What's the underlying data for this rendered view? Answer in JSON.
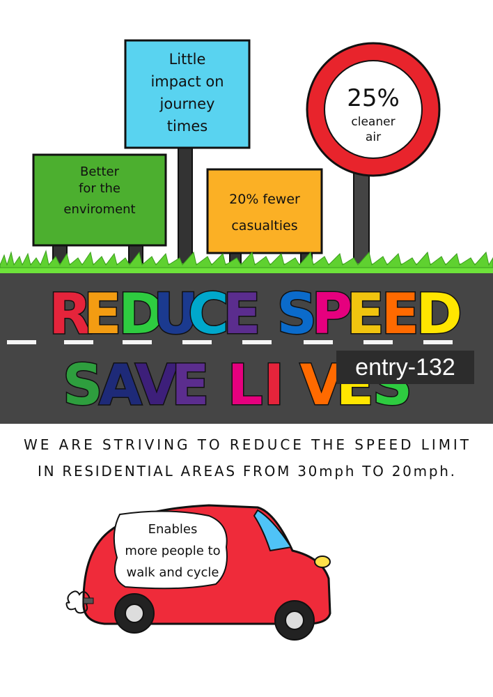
{
  "signs": {
    "green": [
      "Better",
      "for the",
      "enviroment"
    ],
    "blue": [
      "Little",
      "impact on",
      "journey",
      "times"
    ],
    "orange": [
      "20% fewer",
      "casualties"
    ],
    "round": [
      "25%",
      "cleaner",
      "air"
    ]
  },
  "headline": {
    "line1": [
      "R",
      "E",
      "D",
      "U",
      "C",
      "E",
      " ",
      "S",
      "P",
      "E",
      "E",
      "D"
    ],
    "line2": [
      "S",
      "A",
      "V",
      "E",
      " ",
      "L",
      "I",
      "V",
      "E",
      "S"
    ]
  },
  "colors": {
    "line1": [
      "#e5243b",
      "#f39c12",
      "#2ecc40",
      "#1b3a8f",
      "#00a8cc",
      "#5b2d8e",
      "",
      "#0b6bcb",
      "#e6007e",
      "#f1c40f",
      "#ff6a00",
      "#ffe600"
    ],
    "line2": [
      "#2e9e3e",
      "#1e2a78",
      "#3d1f7a",
      "#5b2d8e",
      "",
      "#e6007e",
      "#e5243b",
      "#ff6a00",
      "#ffe600",
      "#2ecc40"
    ]
  },
  "entry_tag": "entry-132",
  "statement": {
    "line1": "WE ARE STRIVING TO REDUCE THE SPEED LIMIT",
    "line2": "IN RESIDENTIAL AREAS FROM 30mph TO 20mph."
  },
  "van": [
    "Enables",
    "more people to",
    "walk and cycle"
  ]
}
